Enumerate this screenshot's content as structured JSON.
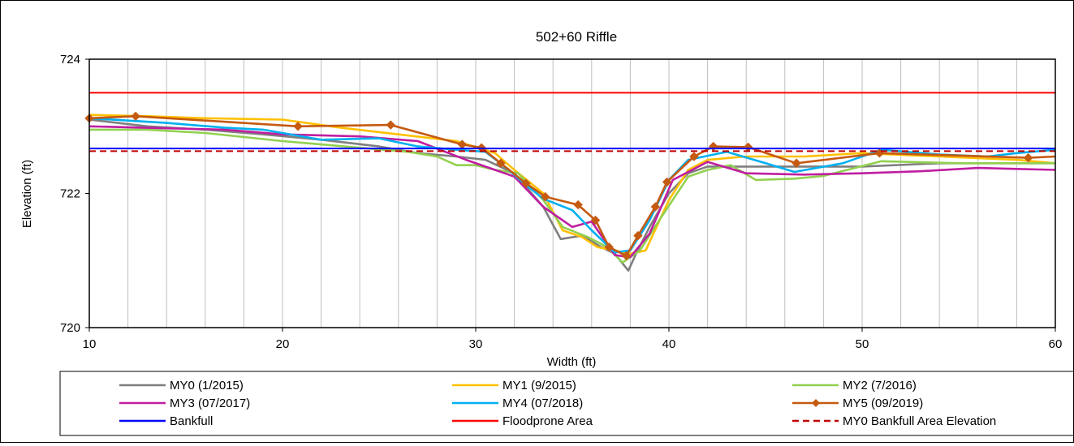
{
  "chart_data": {
    "type": "line",
    "title": "502+60 Riffle",
    "xlabel": "Width (ft)",
    "ylabel": "Elevation (ft)",
    "xlim": [
      10,
      60
    ],
    "ylim": [
      720,
      724
    ],
    "x_ticks": [
      10,
      20,
      30,
      40,
      50,
      60
    ],
    "y_ticks": [
      720,
      722,
      724
    ],
    "x_minor_step": 2,
    "grid": "vertical",
    "legend_position": "bottom",
    "series": [
      {
        "name": "MY0 (1/2015)",
        "color": "#7f7f7f",
        "marker": "none",
        "dash": "solid",
        "points": [
          [
            10,
            723.1
          ],
          [
            13,
            723.0
          ],
          [
            16,
            722.95
          ],
          [
            19,
            722.88
          ],
          [
            22,
            722.8
          ],
          [
            25,
            722.7
          ],
          [
            27,
            722.6
          ],
          [
            29,
            722.55
          ],
          [
            30.5,
            722.5
          ],
          [
            32,
            722.3
          ],
          [
            33.5,
            721.8
          ],
          [
            34.4,
            721.32
          ],
          [
            35.5,
            721.37
          ],
          [
            36.5,
            721.2
          ],
          [
            37.2,
            721.1
          ],
          [
            37.9,
            720.85
          ],
          [
            38.3,
            721.1
          ],
          [
            39,
            721.5
          ],
          [
            40,
            722.0
          ],
          [
            41,
            722.3
          ],
          [
            42,
            722.4
          ],
          [
            44,
            722.4
          ],
          [
            47,
            722.4
          ],
          [
            50,
            722.4
          ],
          [
            54,
            722.45
          ],
          [
            58,
            722.45
          ],
          [
            60,
            722.45
          ]
        ]
      },
      {
        "name": "MY1 (9/2015)",
        "color": "#ffc000",
        "marker": "none",
        "dash": "solid",
        "points": [
          [
            10,
            723.17
          ],
          [
            13,
            723.15
          ],
          [
            16,
            723.12
          ],
          [
            20,
            723.1
          ],
          [
            23,
            722.98
          ],
          [
            26,
            722.88
          ],
          [
            29,
            722.78
          ],
          [
            31,
            722.6
          ],
          [
            32,
            722.35
          ],
          [
            33.5,
            722.0
          ],
          [
            34.5,
            721.45
          ],
          [
            35.5,
            721.35
          ],
          [
            36.3,
            721.2
          ],
          [
            37.2,
            721.15
          ],
          [
            38,
            721.1
          ],
          [
            38.8,
            721.15
          ],
          [
            40,
            721.9
          ],
          [
            41,
            722.35
          ],
          [
            42,
            722.5
          ],
          [
            44,
            722.55
          ],
          [
            47,
            722.55
          ],
          [
            50,
            722.6
          ],
          [
            54,
            722.55
          ],
          [
            58,
            722.5
          ],
          [
            60,
            722.45
          ]
        ]
      },
      {
        "name": "MY2 (7/2016)",
        "color": "#92d050",
        "marker": "none",
        "dash": "solid",
        "points": [
          [
            10,
            722.95
          ],
          [
            13,
            722.95
          ],
          [
            16,
            722.9
          ],
          [
            20,
            722.78
          ],
          [
            24,
            722.68
          ],
          [
            26.5,
            722.62
          ],
          [
            28,
            722.55
          ],
          [
            29,
            722.42
          ],
          [
            30,
            722.42
          ],
          [
            31,
            722.35
          ],
          [
            32.2,
            722.3
          ],
          [
            33.5,
            721.9
          ],
          [
            34.5,
            721.5
          ],
          [
            35.8,
            721.35
          ],
          [
            36.8,
            721.2
          ],
          [
            37.6,
            720.97
          ],
          [
            38.5,
            721.15
          ],
          [
            39.5,
            721.6
          ],
          [
            41,
            722.25
          ],
          [
            42,
            722.35
          ],
          [
            43.2,
            722.42
          ],
          [
            44.5,
            722.2
          ],
          [
            46.5,
            722.22
          ],
          [
            48,
            722.26
          ],
          [
            51,
            722.48
          ],
          [
            55,
            722.45
          ],
          [
            60,
            722.45
          ]
        ]
      },
      {
        "name": "MY3 (07/2017)",
        "color": "#bf1ea0",
        "marker": "none",
        "dash": "solid",
        "points": [
          [
            10,
            723.0
          ],
          [
            14,
            722.97
          ],
          [
            17,
            722.95
          ],
          [
            20,
            722.88
          ],
          [
            24,
            722.85
          ],
          [
            27,
            722.78
          ],
          [
            29.5,
            722.5
          ],
          [
            31,
            722.35
          ],
          [
            32,
            722.25
          ],
          [
            33.5,
            721.8
          ],
          [
            35,
            721.5
          ],
          [
            36,
            721.58
          ],
          [
            37.2,
            721.08
          ],
          [
            38,
            721.05
          ],
          [
            39,
            721.4
          ],
          [
            40.2,
            722.2
          ],
          [
            42,
            722.47
          ],
          [
            44,
            722.3
          ],
          [
            47,
            722.28
          ],
          [
            50,
            722.3
          ],
          [
            53,
            722.33
          ],
          [
            56,
            722.38
          ],
          [
            60,
            722.35
          ]
        ]
      },
      {
        "name": "MY4 (07/2018)",
        "color": "#00b0f0",
        "marker": "none",
        "dash": "solid",
        "points": [
          [
            10,
            723.12
          ],
          [
            14,
            723.05
          ],
          [
            17,
            722.98
          ],
          [
            19,
            722.95
          ],
          [
            22,
            722.8
          ],
          [
            25,
            722.82
          ],
          [
            27,
            722.7
          ],
          [
            29,
            722.65
          ],
          [
            30.5,
            722.62
          ],
          [
            31.5,
            722.4
          ],
          [
            32.5,
            722.15
          ],
          [
            33.5,
            721.92
          ],
          [
            35,
            721.75
          ],
          [
            36,
            721.45
          ],
          [
            37.2,
            721.12
          ],
          [
            38,
            721.15
          ],
          [
            39,
            721.6
          ],
          [
            40,
            722.2
          ],
          [
            41,
            722.5
          ],
          [
            43,
            722.62
          ],
          [
            45,
            722.45
          ],
          [
            46.5,
            722.32
          ],
          [
            49,
            722.45
          ],
          [
            51,
            722.65
          ],
          [
            54,
            722.58
          ],
          [
            56.5,
            722.55
          ],
          [
            58,
            722.6
          ],
          [
            60,
            722.65
          ]
        ]
      },
      {
        "name": "MY5 (09/2019)",
        "color": "#c55a11",
        "marker": "diamond",
        "dash": "solid",
        "points": [
          [
            10,
            723.12
          ],
          [
            12.4,
            723.15
          ],
          [
            20.8,
            723.0
          ],
          [
            25.6,
            723.02
          ],
          [
            29.3,
            722.73
          ],
          [
            30.3,
            722.68
          ],
          [
            31.3,
            722.45
          ],
          [
            32.6,
            722.15
          ],
          [
            33.6,
            721.95
          ],
          [
            35.3,
            721.83
          ],
          [
            36.2,
            721.6
          ],
          [
            36.9,
            721.2
          ],
          [
            37.8,
            721.07
          ],
          [
            38.4,
            721.37
          ],
          [
            39.3,
            721.8
          ],
          [
            39.9,
            722.17
          ],
          [
            41.3,
            722.55
          ],
          [
            42.3,
            722.7
          ],
          [
            44.1,
            722.69
          ],
          [
            46.6,
            722.45
          ],
          [
            50.9,
            722.6
          ],
          [
            58.6,
            722.53
          ],
          [
            60,
            722.55
          ]
        ]
      },
      {
        "name": "Bankfull",
        "color": "#0000ff",
        "marker": "none",
        "dash": "solid",
        "points": [
          [
            10,
            722.67
          ],
          [
            60,
            722.67
          ]
        ]
      },
      {
        "name": "Floodprone Area",
        "color": "#ff0000",
        "marker": "none",
        "dash": "solid",
        "points": [
          [
            10,
            723.5
          ],
          [
            60,
            723.5
          ]
        ]
      },
      {
        "name": "MY0 Bankfull Area Elevation",
        "color": "#c00000",
        "marker": "none",
        "dash": "dashed",
        "points": [
          [
            10,
            722.63
          ],
          [
            60,
            722.63
          ]
        ]
      }
    ]
  }
}
